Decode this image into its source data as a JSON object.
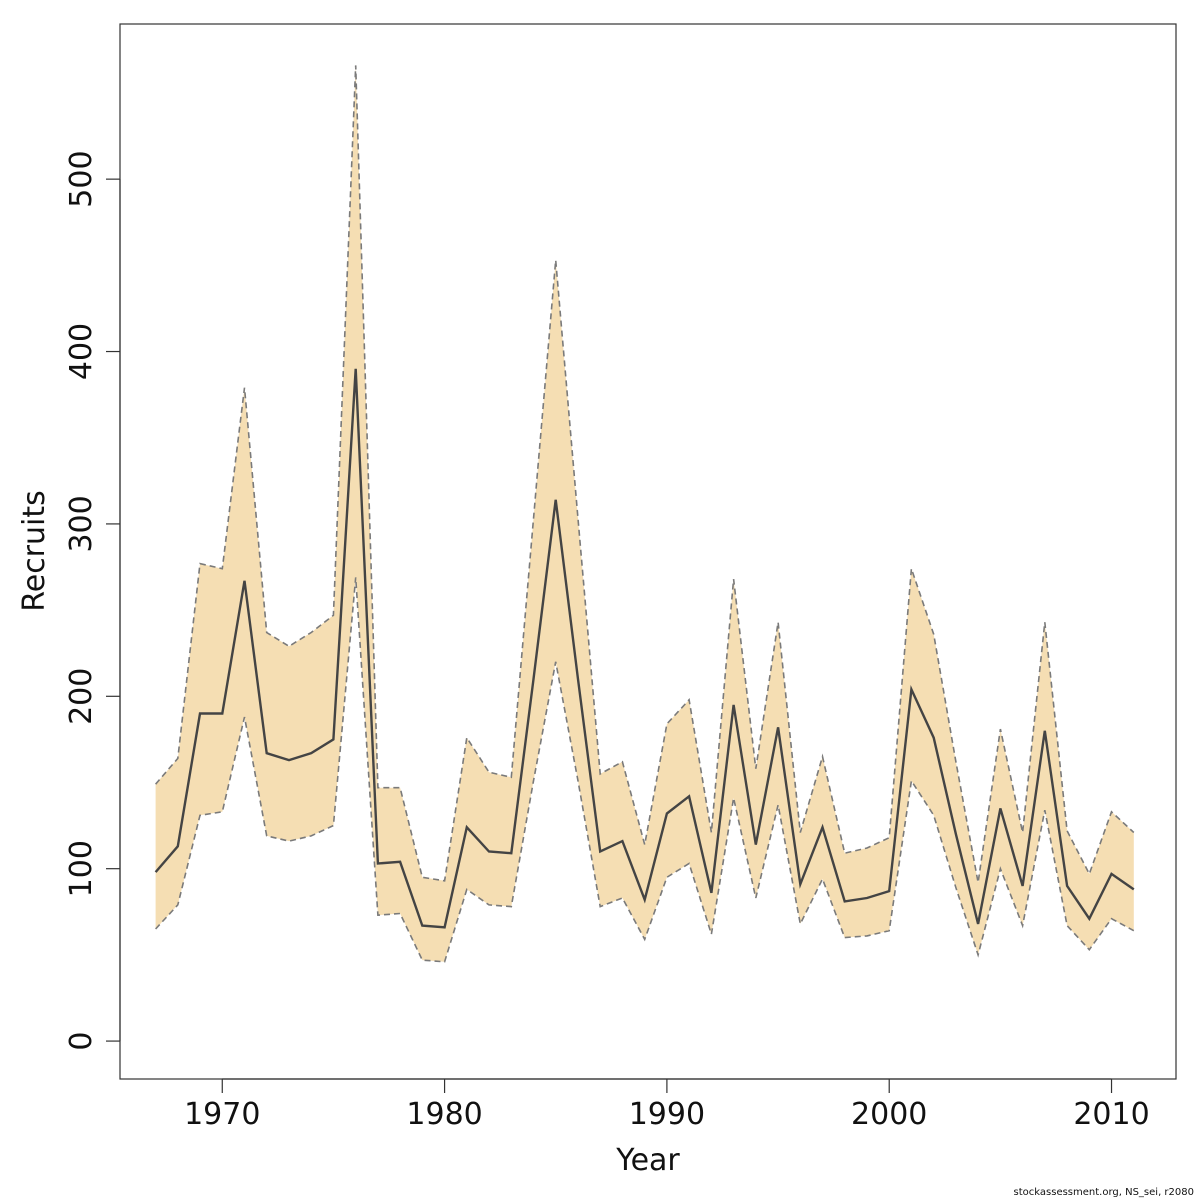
{
  "colors": {
    "band_fill": "#f5deb3",
    "band_edge": "#7a7a7a",
    "estimate_line": "#444444"
  },
  "footer": {
    "credit": "stockassessment.org, NS_sei, r2080"
  },
  "chart_data": {
    "type": "line",
    "xlabel": "Year",
    "ylabel": "Recruits",
    "xlim": [
      1965.4,
      2012.9
    ],
    "ylim": [
      -22,
      590
    ],
    "xticks": [
      1970,
      1980,
      1990,
      2000,
      2010
    ],
    "yticks": [
      0,
      100,
      200,
      300,
      400,
      500
    ],
    "grid": false,
    "x": [
      1967,
      1968,
      1969,
      1970,
      1971,
      1972,
      1973,
      1974,
      1975,
      1976,
      1977,
      1978,
      1979,
      1980,
      1981,
      1982,
      1983,
      1984,
      1985,
      1986,
      1987,
      1988,
      1989,
      1990,
      1991,
      1992,
      1993,
      1994,
      1995,
      1996,
      1997,
      1998,
      1999,
      2000,
      2001,
      2002,
      2003,
      2004,
      2005,
      2006,
      2007,
      2008,
      2009,
      2010,
      2011
    ],
    "series": [
      {
        "values": [
          98,
          113,
          190,
          190,
          267,
          167,
          163,
          167,
          175,
          390,
          103,
          104,
          67,
          66,
          124,
          110,
          109,
          210,
          314,
          210,
          110,
          116,
          82,
          132,
          142,
          86,
          195,
          114,
          182,
          91,
          124,
          81,
          83,
          87,
          204,
          176,
          120,
          68,
          135,
          90,
          180,
          90,
          71,
          97,
          88
        ]
      },
      {
        "values": [
          149,
          164,
          277,
          274,
          379,
          237,
          229,
          237,
          247,
          566,
          147,
          147,
          95,
          93,
          176,
          156,
          153,
          303,
          453,
          303,
          155,
          162,
          114,
          184,
          198,
          121,
          268,
          158,
          243,
          121,
          165,
          109,
          112,
          118,
          274,
          236,
          162,
          92,
          181,
          121,
          243,
          122,
          97,
          133,
          121
        ]
      },
      {
        "values": [
          65,
          79,
          131,
          133,
          188,
          119,
          116,
          119,
          125,
          269,
          73,
          74,
          47,
          46,
          88,
          79,
          78,
          151,
          220,
          151,
          78,
          83,
          59,
          95,
          103,
          62,
          141,
          83,
          137,
          68,
          94,
          60,
          61,
          64,
          151,
          131,
          89,
          50,
          100,
          67,
          134,
          67,
          53,
          71,
          64
        ]
      }
    ]
  }
}
